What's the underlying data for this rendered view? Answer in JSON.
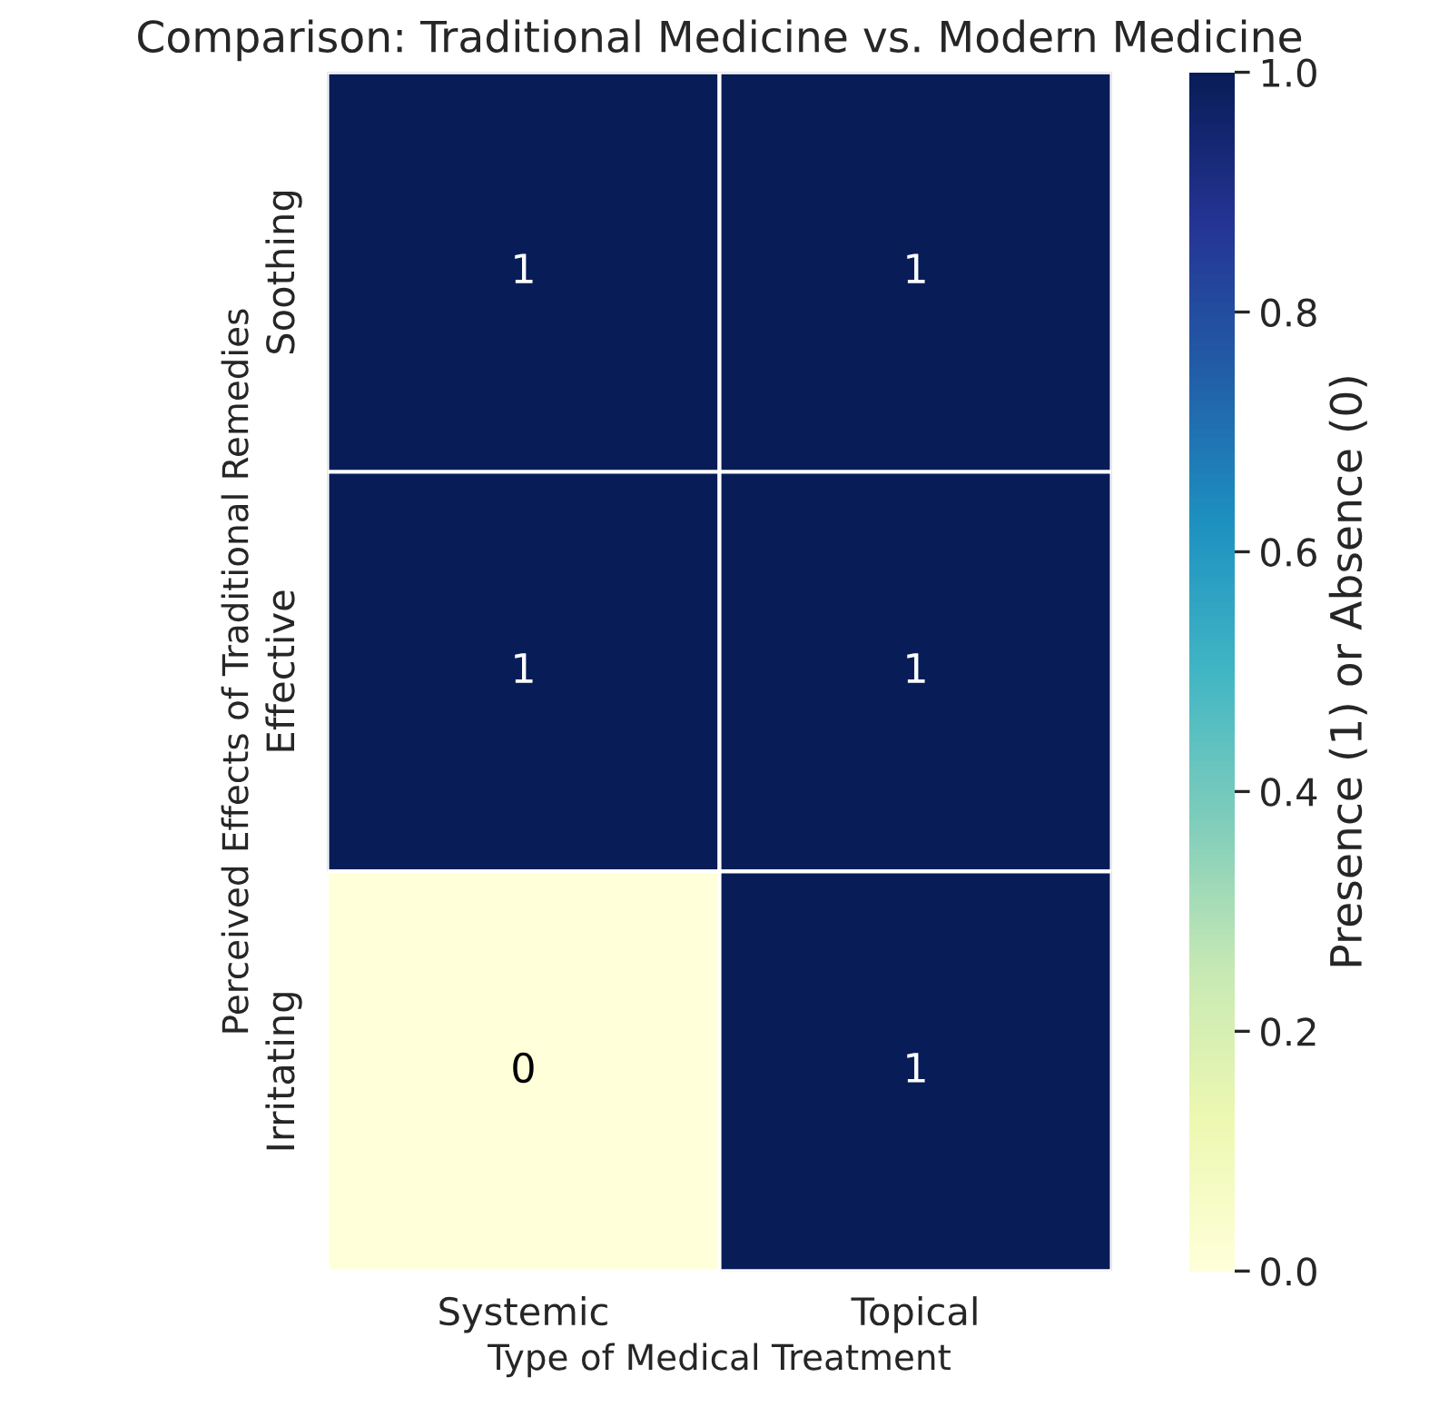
{
  "chart_data": {
    "type": "heatmap",
    "title": "Comparison: Traditional Medicine vs. Modern Medicine",
    "xlabel": "Type of Medical Treatment",
    "ylabel": "Perceived Effects of Traditional Remedies",
    "clabel": "Presence (1) or Absence (0)",
    "categories": [
      "Systemic",
      "Topical"
    ],
    "y_categories": [
      "Soothing",
      "Effective",
      "Irritating"
    ],
    "cells": [
      [
        1,
        1
      ],
      [
        1,
        1
      ],
      [
        0,
        1
      ]
    ],
    "data_labels": true,
    "clim": [
      0,
      1
    ],
    "cticks": [
      {
        "value": 0,
        "label": "0.0"
      },
      {
        "value": 0.2,
        "label": "0.2"
      },
      {
        "value": 0.4,
        "label": "0.4"
      },
      {
        "value": 0.6,
        "label": "0.6"
      },
      {
        "value": 0.8,
        "label": "0.8"
      },
      {
        "value": 1,
        "label": "1.0"
      }
    ]
  }
}
